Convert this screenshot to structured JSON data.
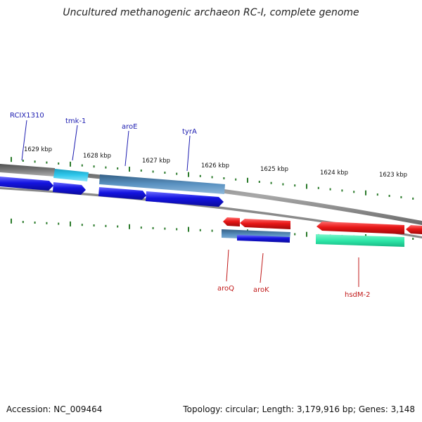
{
  "title": "Uncultured methanogenic archaeon RC-I, complete genome",
  "footer": {
    "accession": "Accession: NC_009464",
    "stats": "Topology: circular; Length: 3,179,916 bp; Genes: 3,148"
  },
  "colors": {
    "backbone": "#8a8a8a",
    "tick": "#2a7a2a",
    "forward_label": "#1b1bb0",
    "reverse_label": "#c01818",
    "gene_blue": "#1414e0",
    "gene_steel": "#4f86b4",
    "gene_cyan": "#2cc4e8",
    "gene_red": "#e81818",
    "gene_teal": "#2ee8a8",
    "gene_gray": "#707070"
  },
  "ticks": [
    {
      "label": "1629 kbp"
    },
    {
      "label": "1628 kbp"
    },
    {
      "label": "1627 kbp"
    },
    {
      "label": "1626 kbp"
    },
    {
      "label": "1625 kbp"
    },
    {
      "label": "1624 kbp"
    },
    {
      "label": "1623 kbp"
    }
  ],
  "forward_labels": [
    {
      "text": "RCIX1310"
    },
    {
      "text": "tmk-1"
    },
    {
      "text": "aroE"
    },
    {
      "text": "tyrA"
    }
  ],
  "reverse_labels": [
    {
      "text": "aroQ"
    },
    {
      "text": "aroK"
    },
    {
      "text": "hsdM-2"
    }
  ]
}
